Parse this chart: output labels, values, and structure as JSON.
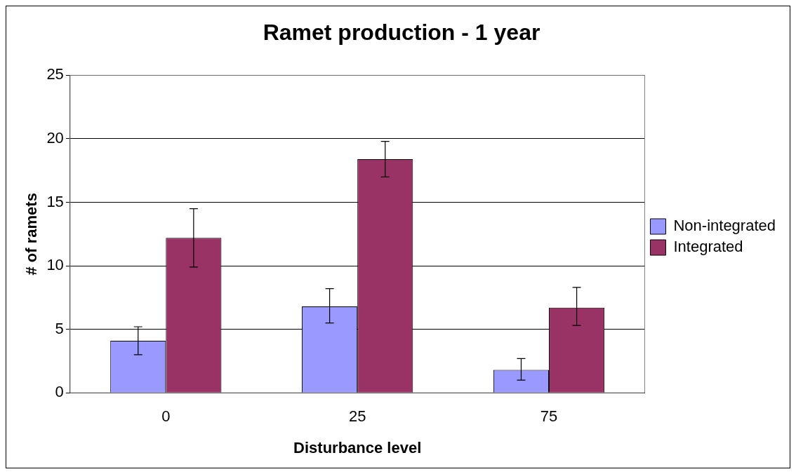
{
  "chart_data": {
    "type": "bar",
    "title": "Ramet production - 1 year",
    "xlabel": "Disturbance level",
    "ylabel": "# of ramets",
    "categories": [
      "0",
      "25",
      "75"
    ],
    "series": [
      {
        "name": "Non-integrated",
        "color": "#9999ff",
        "values": [
          4.1,
          6.8,
          1.8
        ],
        "errors": [
          [
            3.0,
            5.2
          ],
          [
            5.5,
            8.2
          ],
          [
            1.0,
            2.7
          ]
        ]
      },
      {
        "name": "Integrated",
        "color": "#993366",
        "values": [
          12.2,
          18.4,
          6.7
        ],
        "errors": [
          [
            9.9,
            14.5
          ],
          [
            17.0,
            19.8
          ],
          [
            5.3,
            8.3
          ]
        ]
      }
    ],
    "ylim": [
      0,
      25
    ],
    "yticks": [
      0,
      5,
      10,
      15,
      20,
      25
    ],
    "grid": "y",
    "legend": "right"
  }
}
